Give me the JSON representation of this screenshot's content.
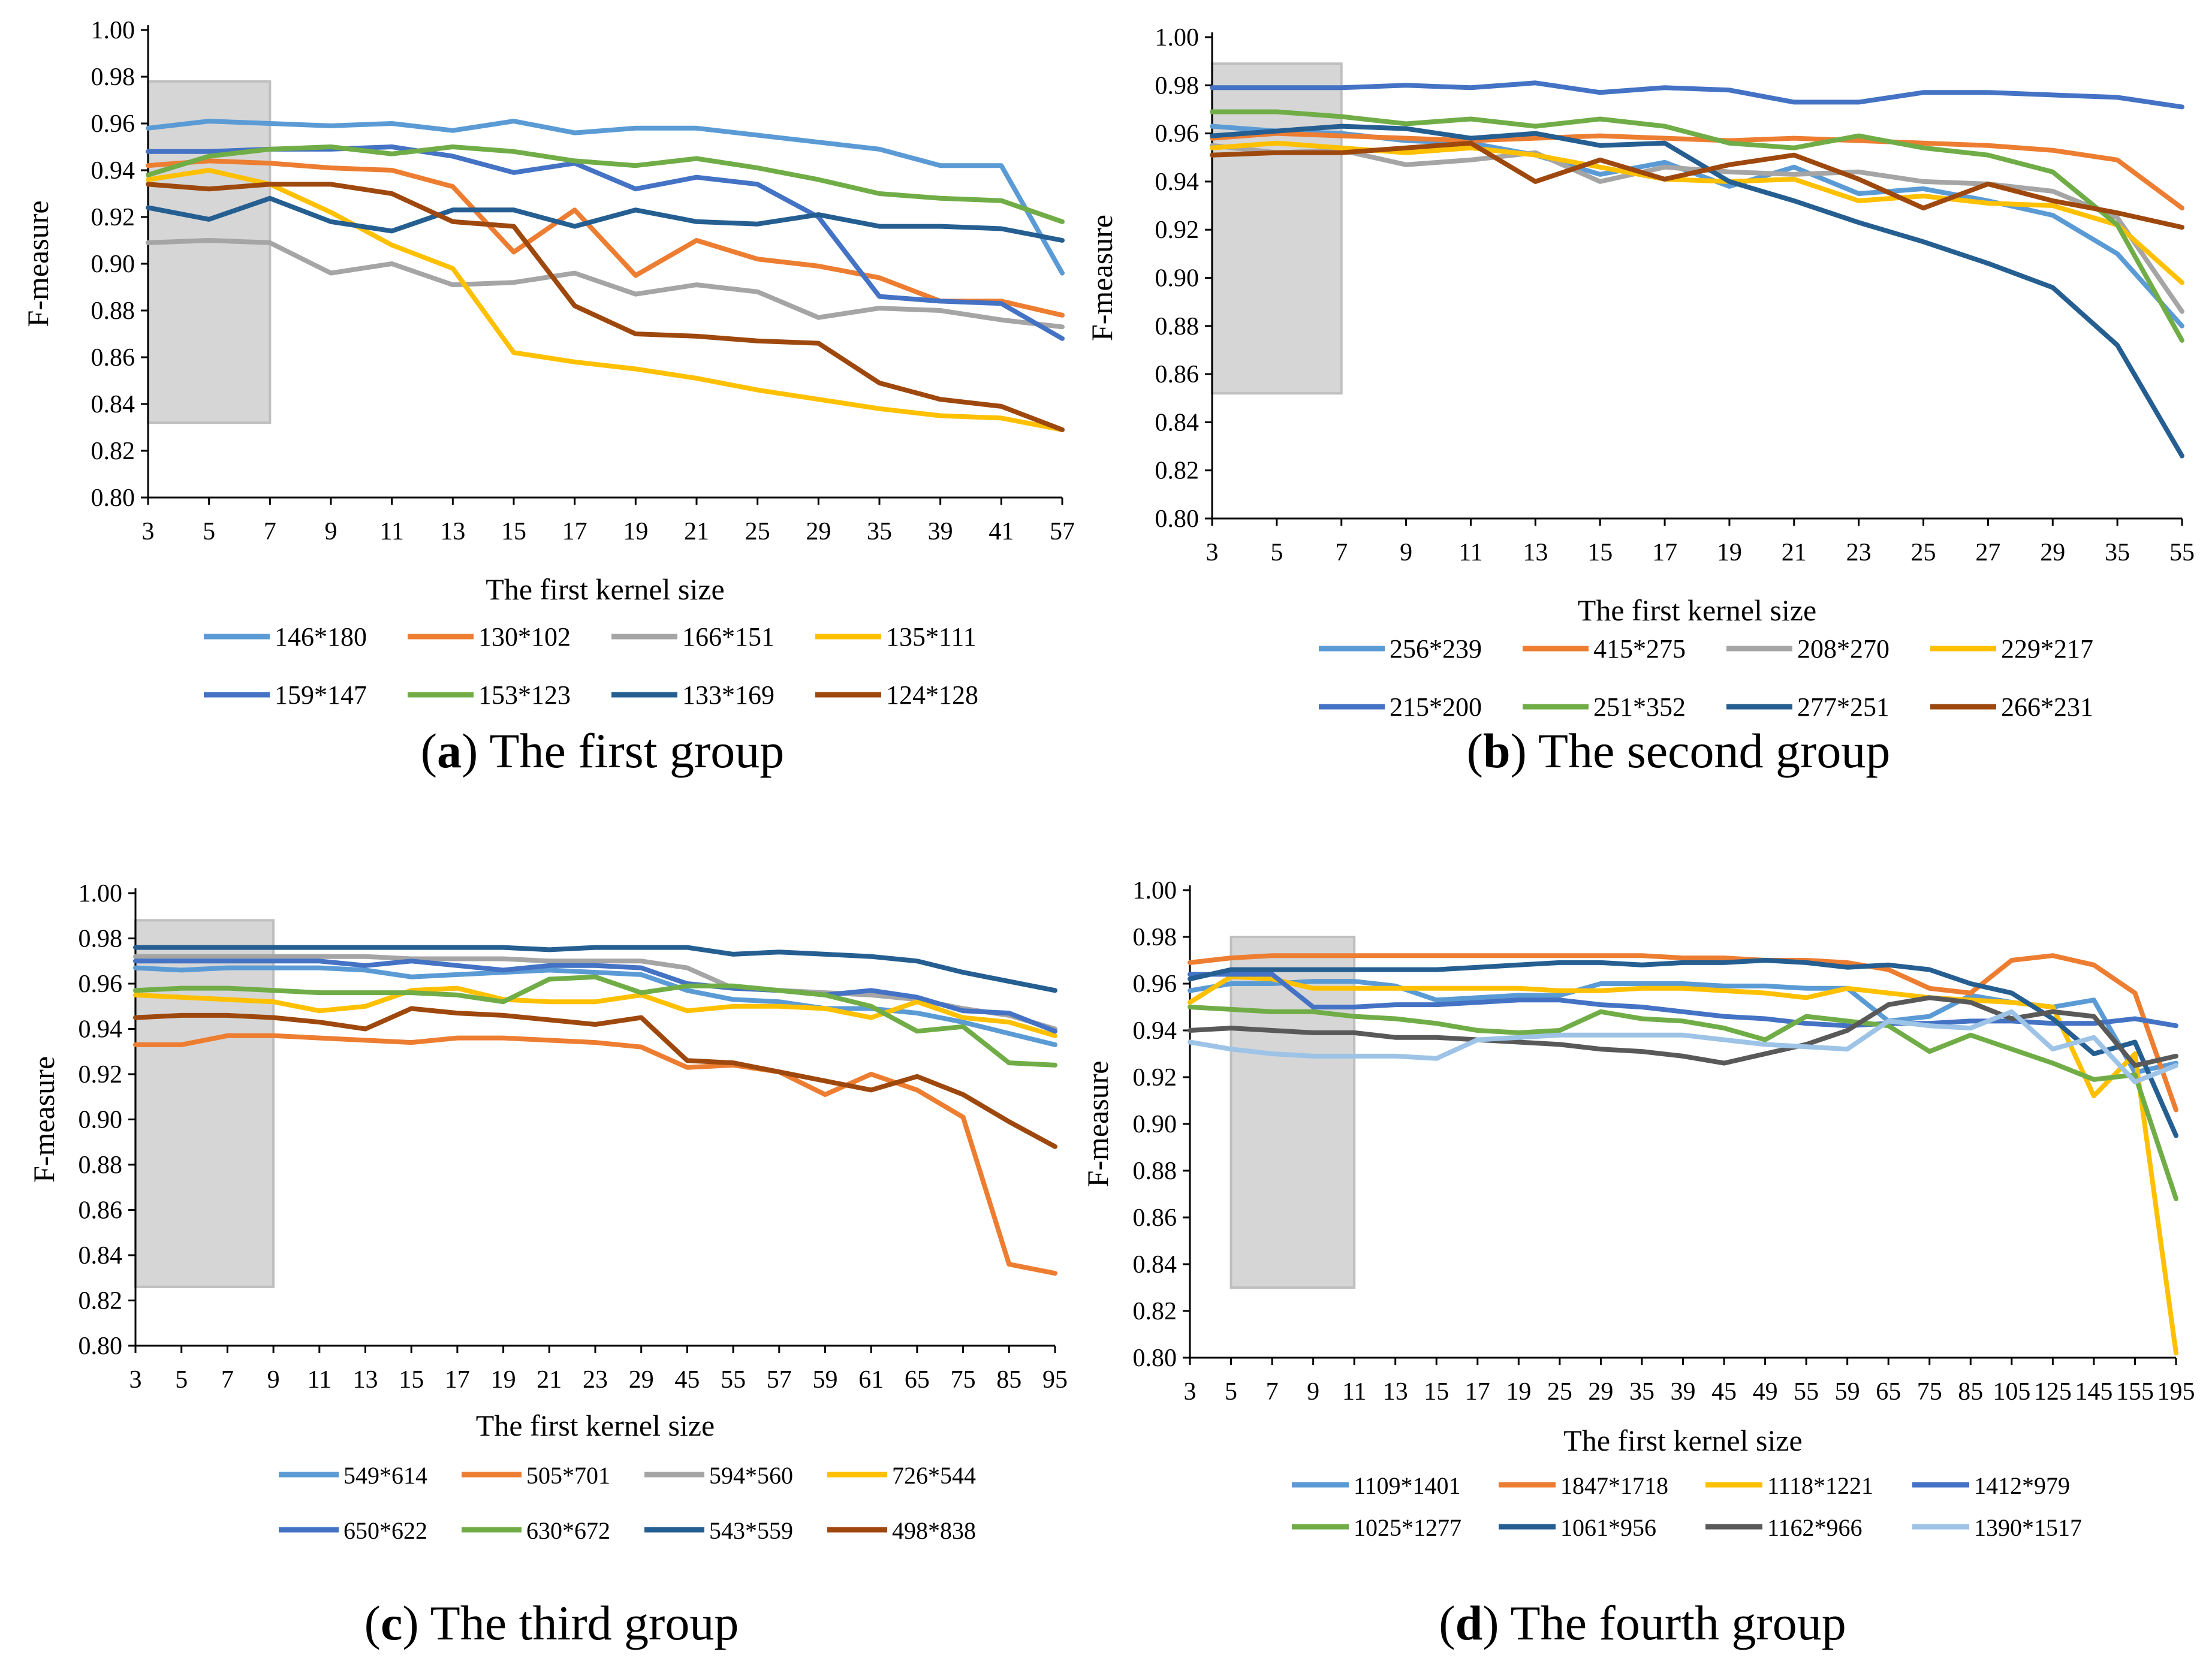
{
  "chart_data": [
    {
      "type": "line",
      "caption_letter": "a",
      "caption_text": "The first group",
      "xlabel": "The first kernel size",
      "ylabel": "F-measure",
      "ylim": [
        0.8,
        1.0
      ],
      "yticks": [
        "0.80",
        "0.82",
        "0.84",
        "0.86",
        "0.88",
        "0.90",
        "0.92",
        "0.94",
        "0.96",
        "0.98",
        "1.00"
      ],
      "categories": [
        "3",
        "5",
        "7",
        "9",
        "11",
        "13",
        "15",
        "17",
        "19",
        "21",
        "25",
        "29",
        "35",
        "39",
        "41",
        "57"
      ],
      "highlight_range": {
        "x": [
          3,
          7
        ],
        "y": [
          0.832,
          0.978
        ]
      },
      "series": [
        {
          "name": "146*180",
          "color": "#5B9BD5",
          "values": [
            0.958,
            0.961,
            0.96,
            0.959,
            0.96,
            0.957,
            0.961,
            0.956,
            0.958,
            0.958,
            0.955,
            0.952,
            0.949,
            0.942,
            0.942,
            0.896
          ]
        },
        {
          "name": "130*102",
          "color": "#ED7D31",
          "values": [
            0.942,
            0.944,
            0.943,
            0.941,
            0.94,
            0.933,
            0.905,
            0.923,
            0.895,
            0.91,
            0.902,
            0.899,
            0.894,
            0.884,
            0.884,
            0.878
          ]
        },
        {
          "name": "166*151",
          "color": "#A5A5A5",
          "values": [
            0.909,
            0.91,
            0.909,
            0.896,
            0.9,
            0.891,
            0.892,
            0.896,
            0.887,
            0.891,
            0.888,
            0.877,
            0.881,
            0.88,
            0.876,
            0.873
          ]
        },
        {
          "name": "135*111",
          "color": "#FFC000",
          "values": [
            0.936,
            0.94,
            0.934,
            0.922,
            0.908,
            0.898,
            0.862,
            0.858,
            0.855,
            0.851,
            0.846,
            0.842,
            0.838,
            0.835,
            0.834,
            0.829
          ]
        },
        {
          "name": "159*147",
          "color": "#4472C4",
          "values": [
            0.948,
            0.948,
            0.949,
            0.949,
            0.95,
            0.946,
            0.939,
            0.943,
            0.932,
            0.937,
            0.934,
            0.92,
            0.886,
            0.884,
            0.883,
            0.868
          ]
        },
        {
          "name": "153*123",
          "color": "#70AD47",
          "values": [
            0.938,
            0.946,
            0.949,
            0.95,
            0.947,
            0.95,
            0.948,
            0.944,
            0.942,
            0.945,
            0.941,
            0.936,
            0.93,
            0.928,
            0.927,
            0.918
          ]
        },
        {
          "name": "133*169",
          "color": "#255E91",
          "values": [
            0.924,
            0.919,
            0.928,
            0.918,
            0.914,
            0.923,
            0.923,
            0.916,
            0.923,
            0.918,
            0.917,
            0.921,
            0.916,
            0.916,
            0.915,
            0.91
          ]
        },
        {
          "name": "124*128",
          "color": "#9E480E",
          "values": [
            0.934,
            0.932,
            0.934,
            0.934,
            0.93,
            0.918,
            0.916,
            0.882,
            0.87,
            0.869,
            0.867,
            0.866,
            0.849,
            0.842,
            0.839,
            0.829
          ]
        }
      ]
    },
    {
      "type": "line",
      "caption_letter": "b",
      "caption_text": "The second group",
      "xlabel": "The first kernel size",
      "ylabel": "F-measure",
      "ylim": [
        0.8,
        1.0
      ],
      "yticks": [
        "0.80",
        "0.82",
        "0.84",
        "0.86",
        "0.88",
        "0.90",
        "0.92",
        "0.94",
        "0.96",
        "0.98",
        "1.00"
      ],
      "categories": [
        "3",
        "5",
        "7",
        "9",
        "11",
        "13",
        "15",
        "17",
        "19",
        "21",
        "23",
        "25",
        "27",
        "29",
        "35",
        "55"
      ],
      "highlight_range": {
        "x": [
          3,
          7
        ],
        "y": [
          0.852,
          0.989
        ]
      },
      "series": [
        {
          "name": "256*239",
          "color": "#5B9BD5",
          "values": [
            0.963,
            0.961,
            0.96,
            0.957,
            0.956,
            0.951,
            0.943,
            0.948,
            0.938,
            0.946,
            0.935,
            0.937,
            0.932,
            0.926,
            0.91,
            0.88
          ]
        },
        {
          "name": "415*275",
          "color": "#ED7D31",
          "values": [
            0.958,
            0.96,
            0.959,
            0.958,
            0.957,
            0.958,
            0.959,
            0.958,
            0.957,
            0.958,
            0.957,
            0.956,
            0.955,
            0.953,
            0.949,
            0.929
          ]
        },
        {
          "name": "208*270",
          "color": "#A5A5A5",
          "values": [
            0.955,
            0.952,
            0.953,
            0.947,
            0.949,
            0.952,
            0.94,
            0.946,
            0.944,
            0.943,
            0.944,
            0.94,
            0.939,
            0.936,
            0.925,
            0.886
          ]
        },
        {
          "name": "229*217",
          "color": "#FFC000",
          "values": [
            0.954,
            0.956,
            0.954,
            0.952,
            0.954,
            0.951,
            0.946,
            0.941,
            0.94,
            0.941,
            0.932,
            0.934,
            0.931,
            0.93,
            0.922,
            0.898
          ]
        },
        {
          "name": "215*200",
          "color": "#4472C4",
          "values": [
            0.979,
            0.979,
            0.979,
            0.98,
            0.979,
            0.981,
            0.977,
            0.979,
            0.978,
            0.973,
            0.973,
            0.977,
            0.977,
            0.976,
            0.975,
            0.971
          ]
        },
        {
          "name": "251*352",
          "color": "#70AD47",
          "values": [
            0.969,
            0.969,
            0.967,
            0.964,
            0.966,
            0.963,
            0.966,
            0.963,
            0.956,
            0.954,
            0.959,
            0.954,
            0.951,
            0.944,
            0.922,
            0.874
          ]
        },
        {
          "name": "277*251",
          "color": "#255E91",
          "values": [
            0.959,
            0.961,
            0.963,
            0.962,
            0.958,
            0.96,
            0.955,
            0.956,
            0.94,
            0.932,
            0.923,
            0.915,
            0.906,
            0.896,
            0.872,
            0.826
          ]
        },
        {
          "name": "266*231",
          "color": "#9E480E",
          "values": [
            0.951,
            0.952,
            0.952,
            0.954,
            0.956,
            0.94,
            0.949,
            0.941,
            0.947,
            0.951,
            0.941,
            0.929,
            0.939,
            0.932,
            0.927,
            0.921
          ]
        }
      ]
    },
    {
      "type": "line",
      "caption_letter": "c",
      "caption_text": "The third group",
      "xlabel": "The first kernel size",
      "ylabel": "F-measure",
      "ylim": [
        0.8,
        1.0
      ],
      "yticks": [
        "0.80",
        "0.82",
        "0.84",
        "0.86",
        "0.88",
        "0.90",
        "0.92",
        "0.94",
        "0.96",
        "0.98",
        "1.00"
      ],
      "categories": [
        "3",
        "5",
        "7",
        "9",
        "11",
        "13",
        "15",
        "17",
        "19",
        "21",
        "23",
        "29",
        "45",
        "55",
        "57",
        "59",
        "61",
        "65",
        "75",
        "85",
        "95"
      ],
      "highlight_range": {
        "x": [
          3,
          9
        ],
        "y": [
          0.826,
          0.988
        ]
      },
      "series": [
        {
          "name": "549*614",
          "color": "#5B9BD5",
          "values": [
            0.967,
            0.966,
            0.967,
            0.967,
            0.967,
            0.966,
            0.963,
            0.964,
            0.965,
            0.966,
            0.965,
            0.964,
            0.957,
            0.953,
            0.952,
            0.949,
            0.949,
            0.947,
            0.943,
            0.938,
            0.933
          ]
        },
        {
          "name": "505*701",
          "color": "#ED7D31",
          "values": [
            0.933,
            0.933,
            0.937,
            0.937,
            0.936,
            0.935,
            0.934,
            0.936,
            0.936,
            0.935,
            0.934,
            0.932,
            0.923,
            0.924,
            0.921,
            0.911,
            0.92,
            0.913,
            0.901,
            0.836,
            0.832
          ]
        },
        {
          "name": "594*560",
          "color": "#A5A5A5",
          "values": [
            0.972,
            0.972,
            0.972,
            0.972,
            0.972,
            0.972,
            0.971,
            0.971,
            0.971,
            0.97,
            0.97,
            0.97,
            0.967,
            0.958,
            0.957,
            0.956,
            0.955,
            0.953,
            0.949,
            0.946,
            0.94
          ]
        },
        {
          "name": "726*544",
          "color": "#FFC000",
          "values": [
            0.955,
            0.954,
            0.953,
            0.952,
            0.948,
            0.95,
            0.957,
            0.958,
            0.953,
            0.952,
            0.952,
            0.955,
            0.948,
            0.95,
            0.95,
            0.949,
            0.945,
            0.952,
            0.945,
            0.943,
            0.937
          ]
        },
        {
          "name": "650*622",
          "color": "#4472C4",
          "values": [
            0.97,
            0.97,
            0.97,
            0.97,
            0.97,
            0.968,
            0.97,
            0.968,
            0.966,
            0.968,
            0.968,
            0.967,
            0.96,
            0.958,
            0.957,
            0.955,
            0.957,
            0.954,
            0.948,
            0.947,
            0.939
          ]
        },
        {
          "name": "630*672",
          "color": "#70AD47",
          "values": [
            0.957,
            0.958,
            0.958,
            0.957,
            0.956,
            0.956,
            0.956,
            0.955,
            0.952,
            0.962,
            0.963,
            0.956,
            0.959,
            0.959,
            0.957,
            0.955,
            0.95,
            0.939,
            0.941,
            0.925,
            0.924
          ]
        },
        {
          "name": "543*559",
          "color": "#255E91",
          "values": [
            0.976,
            0.976,
            0.976,
            0.976,
            0.976,
            0.976,
            0.976,
            0.976,
            0.976,
            0.975,
            0.976,
            0.976,
            0.976,
            0.973,
            0.974,
            0.973,
            0.972,
            0.97,
            0.965,
            0.961,
            0.957
          ]
        },
        {
          "name": "498*838",
          "color": "#9E480E",
          "values": [
            0.945,
            0.946,
            0.946,
            0.945,
            0.943,
            0.94,
            0.949,
            0.947,
            0.946,
            0.944,
            0.942,
            0.945,
            0.926,
            0.925,
            0.921,
            0.917,
            0.913,
            0.919,
            0.911,
            0.899,
            0.888
          ]
        }
      ]
    },
    {
      "type": "line",
      "caption_letter": "d",
      "caption_text": "The fourth group",
      "xlabel": "The first kernel size",
      "ylabel": "F-measure",
      "ylim": [
        0.8,
        1.0
      ],
      "yticks": [
        "0.80",
        "0.82",
        "0.84",
        "0.86",
        "0.88",
        "0.90",
        "0.92",
        "0.94",
        "0.96",
        "0.98",
        "1.00"
      ],
      "categories": [
        "3",
        "5",
        "7",
        "9",
        "11",
        "13",
        "15",
        "17",
        "19",
        "25",
        "29",
        "35",
        "39",
        "45",
        "49",
        "55",
        "59",
        "65",
        "75",
        "85",
        "105",
        "125",
        "145",
        "155",
        "195"
      ],
      "highlight_range": {
        "x": [
          5,
          11
        ],
        "y": [
          0.83,
          0.98
        ]
      },
      "series": [
        {
          "name": "1109*1401",
          "color": "#5B9BD5",
          "values": [
            0.957,
            0.96,
            0.96,
            0.961,
            0.961,
            0.959,
            0.953,
            0.954,
            0.955,
            0.955,
            0.96,
            0.96,
            0.96,
            0.959,
            0.959,
            0.958,
            0.958,
            0.944,
            0.946,
            0.955,
            0.952,
            0.95,
            0.953,
            0.922,
            0.926
          ]
        },
        {
          "name": "1847*1718",
          "color": "#ED7D31",
          "values": [
            0.969,
            0.971,
            0.972,
            0.972,
            0.972,
            0.972,
            0.972,
            0.972,
            0.972,
            0.972,
            0.972,
            0.972,
            0.971,
            0.971,
            0.97,
            0.97,
            0.969,
            0.966,
            0.958,
            0.956,
            0.97,
            0.972,
            0.968,
            0.956,
            0.906
          ]
        },
        {
          "name": "1118*1221",
          "color": "#FFC000",
          "values": [
            0.952,
            0.963,
            0.962,
            0.958,
            0.958,
            0.958,
            0.958,
            0.958,
            0.958,
            0.957,
            0.957,
            0.958,
            0.958,
            0.957,
            0.956,
            0.954,
            0.958,
            0.956,
            0.954,
            0.953,
            0.952,
            0.95,
            0.912,
            0.93,
            0.802
          ]
        },
        {
          "name": "1412*979",
          "color": "#4472C4",
          "values": [
            0.964,
            0.964,
            0.964,
            0.95,
            0.95,
            0.951,
            0.951,
            0.952,
            0.953,
            0.953,
            0.951,
            0.95,
            0.948,
            0.946,
            0.945,
            0.943,
            0.942,
            0.943,
            0.943,
            0.944,
            0.944,
            0.943,
            0.943,
            0.945,
            0.942
          ]
        },
        {
          "name": "1025*1277",
          "color": "#70AD47",
          "values": [
            0.95,
            0.949,
            0.948,
            0.948,
            0.946,
            0.945,
            0.943,
            0.94,
            0.939,
            0.94,
            0.948,
            0.945,
            0.944,
            0.941,
            0.936,
            0.946,
            0.944,
            0.942,
            0.931,
            0.938,
            0.932,
            0.926,
            0.919,
            0.921,
            0.868
          ]
        },
        {
          "name": "1061*956",
          "color": "#255E91",
          "values": [
            0.962,
            0.966,
            0.966,
            0.966,
            0.966,
            0.966,
            0.966,
            0.967,
            0.968,
            0.969,
            0.969,
            0.968,
            0.969,
            0.969,
            0.97,
            0.969,
            0.967,
            0.968,
            0.966,
            0.96,
            0.956,
            0.945,
            0.93,
            0.935,
            0.895
          ]
        },
        {
          "name": "1162*966",
          "color": "#595959",
          "values": [
            0.94,
            0.941,
            0.94,
            0.939,
            0.939,
            0.937,
            0.937,
            0.936,
            0.935,
            0.934,
            0.932,
            0.931,
            0.929,
            0.926,
            0.93,
            0.934,
            0.94,
            0.951,
            0.954,
            0.952,
            0.945,
            0.948,
            0.946,
            0.925,
            0.929
          ]
        },
        {
          "name": "1390*1517",
          "color": "#9DC3E6",
          "values": [
            0.935,
            0.932,
            0.93,
            0.929,
            0.929,
            0.929,
            0.928,
            0.936,
            0.937,
            0.938,
            0.938,
            0.938,
            0.938,
            0.936,
            0.934,
            0.933,
            0.932,
            0.944,
            0.942,
            0.941,
            0.948,
            0.932,
            0.937,
            0.918,
            0.925
          ]
        }
      ]
    }
  ]
}
